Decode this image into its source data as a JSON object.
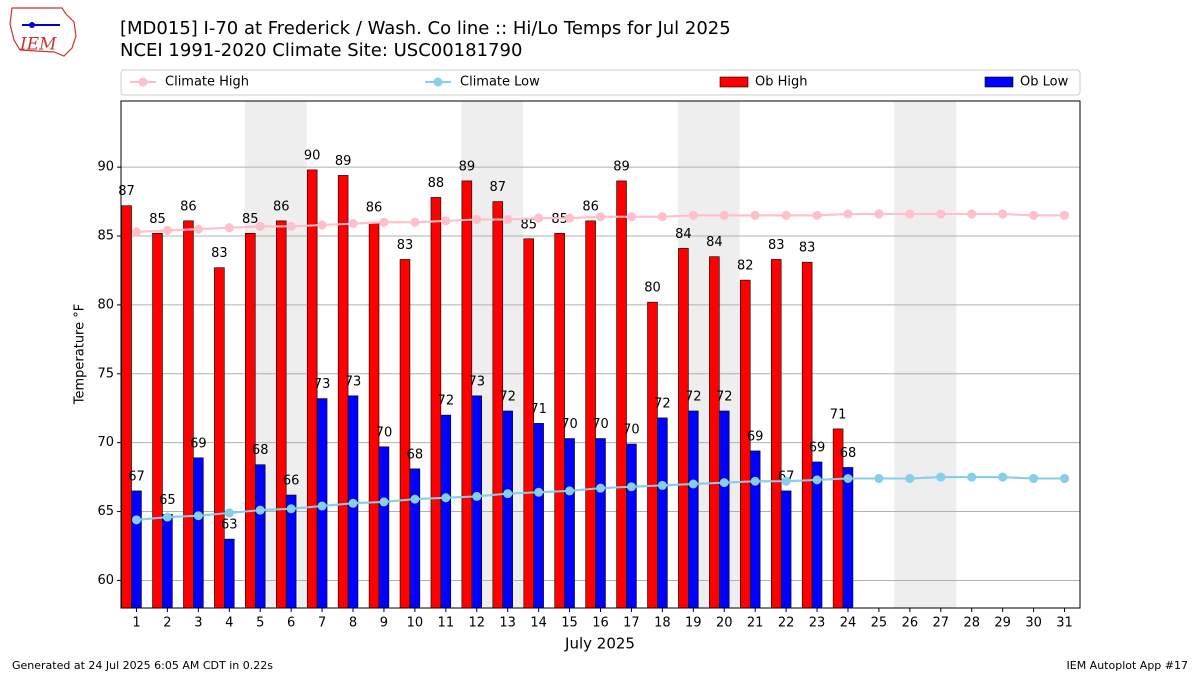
{
  "chart_data": {
    "type": "bar",
    "title": "[MD015] I-70 at Frederick / Wash. Co line :: Hi/Lo Temps for Jul 2025",
    "subtitle": "NCEI 1991-2020 Climate Site: USC00181790",
    "logo_text": "IEM",
    "y_label": "Temperature °F",
    "x_label": "July 2025",
    "x": [
      1,
      2,
      3,
      4,
      5,
      6,
      7,
      8,
      9,
      10,
      11,
      12,
      13,
      14,
      15,
      16,
      17,
      18,
      19,
      20,
      21,
      22,
      23,
      24,
      25,
      26,
      27,
      28,
      29,
      30,
      31
    ],
    "xlim": [
      0.5,
      31.5
    ],
    "xticks": [
      1,
      2,
      3,
      4,
      5,
      6,
      7,
      8,
      9,
      10,
      11,
      12,
      13,
      14,
      15,
      16,
      17,
      18,
      19,
      20,
      21,
      22,
      23,
      24,
      25,
      26,
      27,
      28,
      29,
      30,
      31
    ],
    "ylim": [
      58,
      94.8
    ],
    "yticks": [
      60,
      65,
      70,
      75,
      80,
      85,
      90
    ],
    "grid": true,
    "shaded_spans": [
      [
        4.5,
        6.5
      ],
      [
        11.5,
        13.5
      ],
      [
        18.5,
        20.5
      ],
      [
        25.5,
        27.5
      ]
    ],
    "series": [
      {
        "name": "Climate High",
        "type": "line",
        "color": "#ffc0cb",
        "values": [
          85.3,
          85.4,
          85.5,
          85.6,
          85.7,
          85.7,
          85.8,
          85.9,
          86.0,
          86.0,
          86.1,
          86.2,
          86.2,
          86.3,
          86.3,
          86.4,
          86.4,
          86.4,
          86.5,
          86.5,
          86.5,
          86.5,
          86.5,
          86.6,
          86.6,
          86.6,
          86.6,
          86.6,
          86.6,
          86.5,
          86.5
        ]
      },
      {
        "name": "Climate Low",
        "type": "line",
        "color": "#87ceeb",
        "values": [
          64.4,
          64.6,
          64.7,
          64.9,
          65.1,
          65.2,
          65.4,
          65.6,
          65.7,
          65.9,
          66.0,
          66.1,
          66.3,
          66.4,
          66.5,
          66.7,
          66.8,
          66.9,
          67.0,
          67.1,
          67.2,
          67.2,
          67.3,
          67.4,
          67.4,
          67.4,
          67.5,
          67.5,
          67.5,
          67.4,
          67.4
        ]
      },
      {
        "name": "Ob High",
        "type": "bar",
        "color": "#ff0000",
        "values": [
          87.2,
          85.2,
          86.1,
          82.7,
          85.2,
          86.1,
          89.8,
          89.4,
          86.0,
          83.3,
          87.8,
          89.0,
          87.5,
          84.8,
          85.2,
          86.1,
          89.0,
          80.2,
          84.1,
          83.5,
          81.8,
          83.3,
          83.1,
          71.0,
          null,
          null,
          null,
          null,
          null,
          null,
          null
        ],
        "value_labels": [
          "87",
          "85",
          "86",
          "83",
          "85",
          "86",
          "90",
          "89",
          "86",
          "83",
          "88",
          "89",
          "87",
          "85",
          "85",
          "86",
          "89",
          "80",
          "84",
          "84",
          "82",
          "83",
          "83",
          "71",
          null,
          null,
          null,
          null,
          null,
          null,
          null
        ]
      },
      {
        "name": "Ob Low",
        "type": "bar",
        "color": "#0000ff",
        "values": [
          66.5,
          64.8,
          68.9,
          63.0,
          68.4,
          66.2,
          73.2,
          73.4,
          69.7,
          68.1,
          72.0,
          73.4,
          72.3,
          71.4,
          70.3,
          70.3,
          69.9,
          71.8,
          72.3,
          72.3,
          69.4,
          66.5,
          68.6,
          68.2,
          null,
          null,
          null,
          null,
          null,
          null,
          null
        ],
        "value_labels": [
          "67",
          "65",
          "69",
          "63",
          "68",
          "66",
          "73",
          "73",
          "70",
          "68",
          "72",
          "73",
          "72",
          "71",
          "70",
          "70",
          "70",
          "72",
          "72",
          "72",
          "69",
          "67",
          "69",
          "68",
          null,
          null,
          null,
          null,
          null,
          null,
          null
        ]
      }
    ],
    "footer_left": "Generated at 24 Jul 2025 6:05 AM CDT in 0.22s",
    "footer_right": "IEM Autoplot App #17"
  }
}
